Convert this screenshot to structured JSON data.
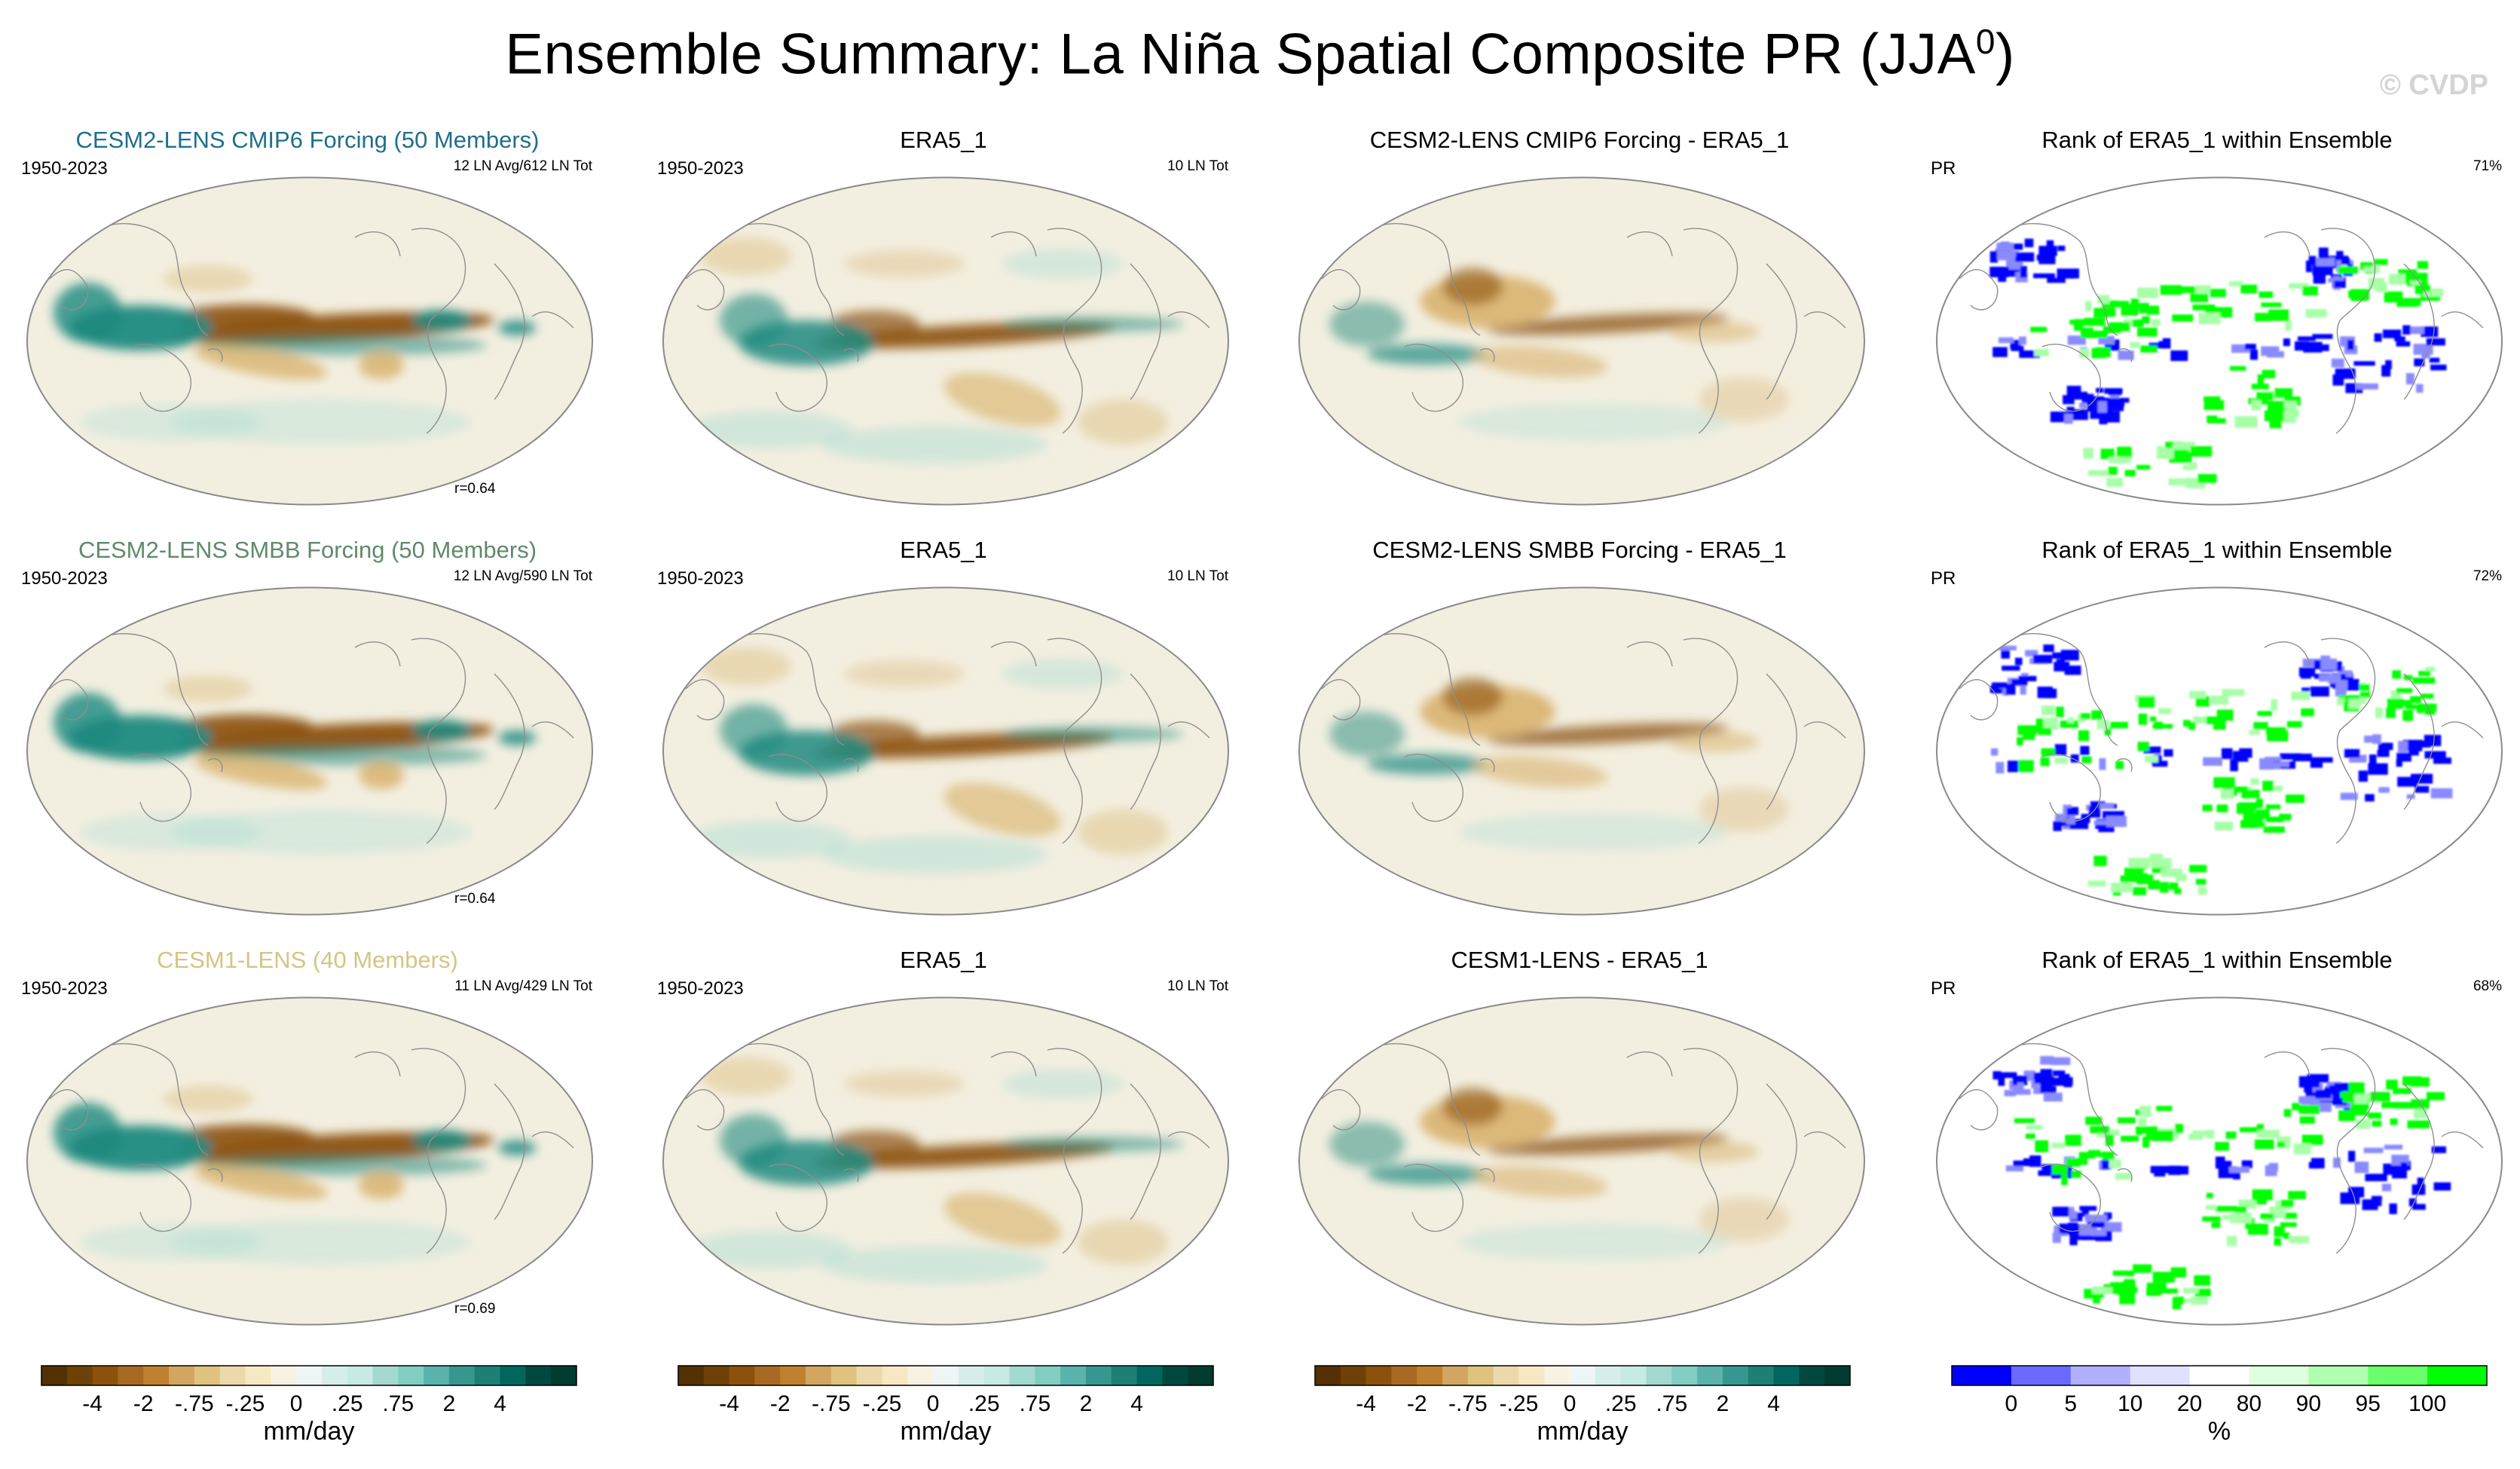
{
  "title": "Ensemble Summary: La Niña Spatial Composite PR (JJA",
  "title_sup": "0",
  "title_close": ")",
  "watermark": "© CVDP",
  "rows": [
    {
      "model": "CESM2-LENS CMIP6 Forcing (50 Members)",
      "model_color": "#1f6f8b",
      "period": "1950-2023",
      "model_events": "12 LN Avg/612 LN Tot",
      "correlation": "r=0.64",
      "obs_title": "ERA5_1",
      "obs_period": "1950-2023",
      "obs_events": "10 LN Tot",
      "diff_title": "CESM2-LENS CMIP6 Forcing - ERA5_1",
      "rank_title": "Rank of ERA5_1 within Ensemble",
      "rank_var": "PR",
      "rank_pct": "71%"
    },
    {
      "model": "CESM2-LENS SMBB Forcing (50 Members)",
      "model_color": "#5f8a6a",
      "period": "1950-2023",
      "model_events": "12 LN Avg/590 LN Tot",
      "correlation": "r=0.64",
      "obs_title": "ERA5_1",
      "obs_period": "1950-2023",
      "obs_events": "10 LN Tot",
      "diff_title": "CESM2-LENS SMBB Forcing - ERA5_1",
      "rank_title": "Rank of ERA5_1 within Ensemble",
      "rank_var": "PR",
      "rank_pct": "72%"
    },
    {
      "model": "CESM1-LENS (40 Members)",
      "model_color": "#d6c486",
      "period": "1950-2023",
      "model_events": "11 LN Avg/429 LN Tot",
      "correlation": "r=0.69",
      "obs_title": "ERA5_1",
      "obs_period": "1950-2023",
      "obs_events": "10 LN Tot",
      "diff_title": "CESM1-LENS - ERA5_1",
      "rank_title": "Rank of ERA5_1 within Ensemble",
      "rank_var": "PR",
      "rank_pct": "68%"
    }
  ],
  "colorbars": {
    "pr": {
      "ticks": [
        "-4",
        "-2",
        "-.75",
        "-.25",
        "0",
        ".25",
        ".75",
        "2",
        "4"
      ],
      "label": "mm/day",
      "colors": [
        "#543005",
        "#6e4109",
        "#8c510a",
        "#a86a23",
        "#bf812d",
        "#d2a660",
        "#dfc27d",
        "#ebd9ab",
        "#f6e8c3",
        "#f9f2e2",
        "#eef6f5",
        "#d5eeea",
        "#c7eae5",
        "#a3d9d0",
        "#80cdc1",
        "#5ab4ac",
        "#35978f",
        "#1d7f76",
        "#01665e",
        "#01483f",
        "#003c30"
      ]
    },
    "rank": {
      "ticks": [
        "0",
        "5",
        "10",
        "20",
        "80",
        "90",
        "95",
        "100"
      ],
      "label": "%",
      "colors": [
        "#0000ff",
        "#6a6aff",
        "#b0b0ff",
        "#e0e0ff",
        "#ffffff",
        "#e0ffe0",
        "#b0ffb0",
        "#6aff6a",
        "#00ff00"
      ]
    }
  },
  "chart_data": [
    {
      "type": "heatmap",
      "title": "CESM2-LENS CMIP6 Forcing (50 Members)",
      "variable": "PR",
      "units": "mm/day",
      "season": "JJA0",
      "composite": "La Niña",
      "pattern_correlation": 0.64
    },
    {
      "type": "heatmap",
      "title": "ERA5_1",
      "variable": "PR",
      "units": "mm/day",
      "events": "10 LN Tot"
    },
    {
      "type": "heatmap",
      "title": "CESM2-LENS CMIP6 Forcing - ERA5_1",
      "variable": "PR",
      "units": "mm/day"
    },
    {
      "type": "heatmap",
      "title": "Rank of ERA5_1 within Ensemble",
      "variable": "PR",
      "units": "%",
      "summary_percent": 71
    },
    {
      "type": "heatmap",
      "title": "CESM2-LENS SMBB Forcing (50 Members)",
      "variable": "PR",
      "units": "mm/day",
      "pattern_correlation": 0.64
    },
    {
      "type": "heatmap",
      "title": "ERA5_1",
      "variable": "PR",
      "units": "mm/day",
      "events": "10 LN Tot"
    },
    {
      "type": "heatmap",
      "title": "CESM2-LENS SMBB Forcing - ERA5_1",
      "variable": "PR",
      "units": "mm/day"
    },
    {
      "type": "heatmap",
      "title": "Rank of ERA5_1 within Ensemble",
      "variable": "PR",
      "units": "%",
      "summary_percent": 72
    },
    {
      "type": "heatmap",
      "title": "CESM1-LENS (40 Members)",
      "variable": "PR",
      "units": "mm/day",
      "pattern_correlation": 0.69
    },
    {
      "type": "heatmap",
      "title": "ERA5_1",
      "variable": "PR",
      "units": "mm/day",
      "events": "10 LN Tot"
    },
    {
      "type": "heatmap",
      "title": "CESM1-LENS - ERA5_1",
      "variable": "PR",
      "units": "mm/day"
    },
    {
      "type": "heatmap",
      "title": "Rank of ERA5_1 within Ensemble",
      "variable": "PR",
      "units": "%",
      "summary_percent": 68
    }
  ]
}
